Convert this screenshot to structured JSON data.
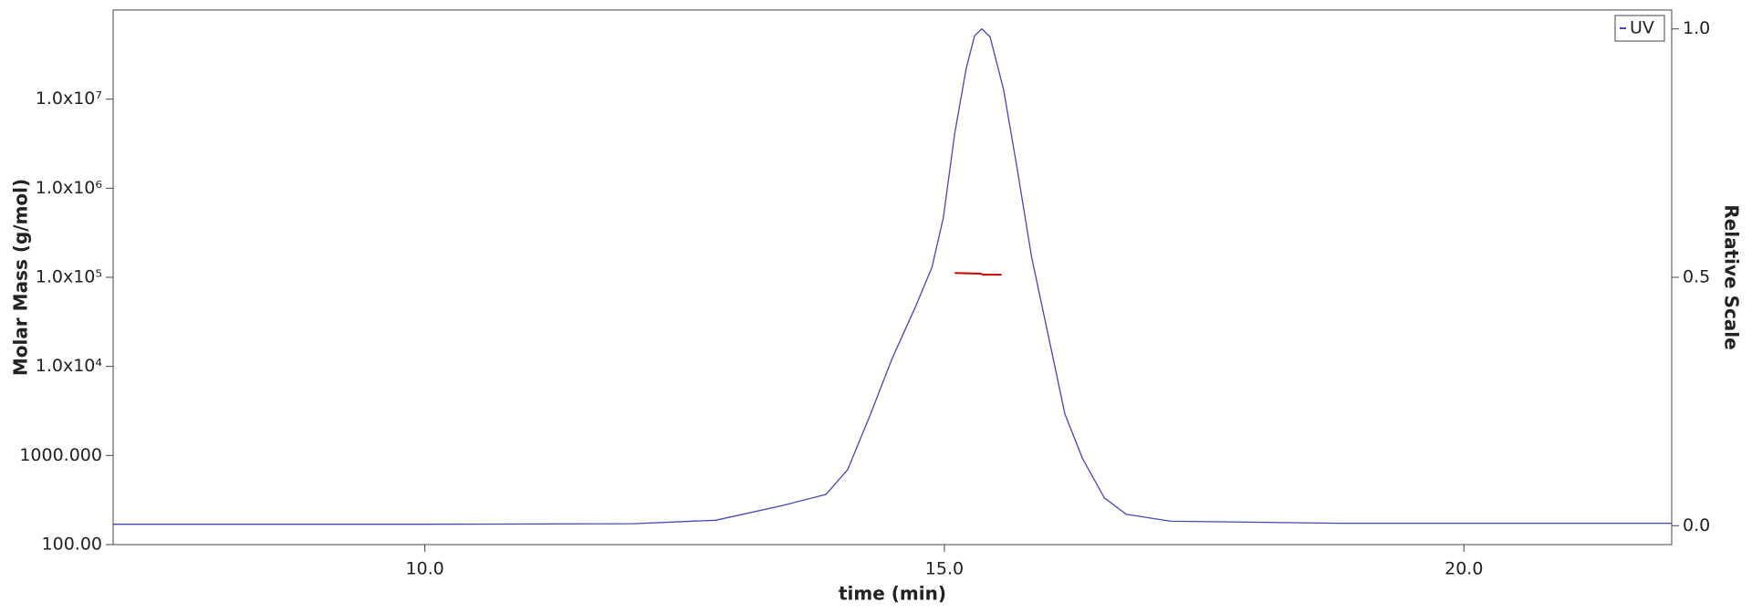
{
  "chart_data": {
    "type": "line",
    "x_label": "time (min)",
    "y_label": "Molar Mass (g/mol)",
    "y2_label": "Relative Scale",
    "xlim": [
      7,
      22
    ],
    "xticks": [
      {
        "value": 10,
        "label": "10.0"
      },
      {
        "value": 15,
        "label": "15.0"
      },
      {
        "value": 20,
        "label": "20.0"
      }
    ],
    "ylim": [
      100,
      100000000
    ],
    "ylog": true,
    "yticks": [
      {
        "value": 100,
        "label": "100.00"
      },
      {
        "value": 1000,
        "label": "1000.000"
      },
      {
        "value": 10000,
        "label": "1.0x10⁴"
      },
      {
        "value": 100000,
        "label": "1.0x10⁵"
      },
      {
        "value": 1000000,
        "label": "1.0x10⁶"
      },
      {
        "value": 10000000,
        "label": "1.0x10⁷"
      }
    ],
    "y2lim": [
      -0.038,
      1.038
    ],
    "y2ticks": [
      {
        "value": 0,
        "label": "0.0"
      },
      {
        "value": 0.5,
        "label": "0.5"
      },
      {
        "value": 1,
        "label": "1.0"
      }
    ],
    "legend": "top-right",
    "series": [
      {
        "name": "UV",
        "color": "#4646b4",
        "axis": "y2",
        "x": [
          7,
          10,
          12,
          12.8,
          13.43,
          13.86,
          14.07,
          14.29,
          14.5,
          14.72,
          14.88,
          14.99,
          15.1,
          15.21,
          15.29,
          15.36,
          15.44,
          15.57,
          15.7,
          15.84,
          16.0,
          16.16,
          16.33,
          16.54,
          16.75,
          17.18,
          18.79,
          22
        ],
        "values": [
          0.003,
          0.003,
          0.004,
          0.011,
          0.04,
          0.063,
          0.113,
          0.225,
          0.338,
          0.44,
          0.52,
          0.62,
          0.79,
          0.92,
          0.986,
          1.0,
          0.984,
          0.878,
          0.72,
          0.54,
          0.383,
          0.225,
          0.135,
          0.056,
          0.023,
          0.009,
          0.005,
          0.005
        ]
      },
      {
        "color": "#cc0000",
        "x": [
          15.1,
          15.35,
          15.37,
          15.55
        ],
        "values": [
          112000,
          110000,
          107000,
          107000
        ]
      }
    ]
  }
}
